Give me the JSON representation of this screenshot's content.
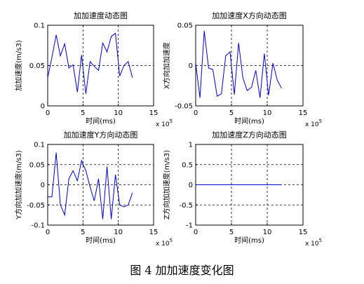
{
  "caption": "图 4 加加速度变化图",
  "colors": {
    "line": "#0000cc",
    "axis": "#000000",
    "grid": "#000000",
    "background": "#ffffff"
  },
  "chart_data": [
    {
      "type": "line",
      "title": "加加速度动态图",
      "xlabel": "时间(ms)",
      "ylabel": "加加速度(m/s3)",
      "x_exponent_label": "x 10",
      "x_exponent_sup": "5",
      "xlim": [
        0,
        15
      ],
      "ylim": [
        0,
        0.1
      ],
      "xticks": [
        "0",
        "5",
        "10",
        "15"
      ],
      "yticks": [
        "0",
        "0.05",
        "0.1"
      ],
      "grid": true,
      "series": [
        {
          "x": [
            0,
            0.6,
            1.2,
            1.8,
            2.4,
            3.0,
            3.6,
            4.2,
            4.8,
            5.4,
            6.0,
            6.6,
            7.2,
            7.8,
            8.4,
            9.0,
            9.6,
            10.2,
            10.8,
            11.4,
            12.0
          ],
          "y": [
            0.035,
            0.06,
            0.088,
            0.062,
            0.077,
            0.047,
            0.051,
            0.017,
            0.063,
            0.015,
            0.055,
            0.049,
            0.044,
            0.078,
            0.067,
            0.086,
            0.09,
            0.037,
            0.05,
            0.055,
            0.035
          ]
        }
      ]
    },
    {
      "type": "line",
      "title": "加加速度X方向动态图",
      "xlabel": "时间(ms)",
      "ylabel": "X方向加加速度",
      "x_exponent_label": "x 10",
      "x_exponent_sup": "5",
      "xlim": [
        0,
        15
      ],
      "ylim": [
        -0.05,
        0.05
      ],
      "xticks": [
        "0",
        "5",
        "10",
        "15"
      ],
      "yticks": [
        "-0.05",
        "0",
        "0.05"
      ],
      "grid": true,
      "series": [
        {
          "x": [
            0,
            0.6,
            1.2,
            1.8,
            2.4,
            3.0,
            3.6,
            4.2,
            4.8,
            5.4,
            6.0,
            6.6,
            7.2,
            7.8,
            8.4,
            9.0,
            9.6,
            10.2,
            10.8,
            11.4,
            12.0
          ],
          "y": [
            0.003,
            -0.04,
            0.043,
            -0.003,
            -0.005,
            -0.038,
            -0.035,
            0.012,
            0.017,
            -0.036,
            0.028,
            -0.015,
            -0.031,
            -0.027,
            -0.006,
            -0.04,
            0.015,
            -0.037,
            0.003,
            -0.018,
            -0.028
          ]
        }
      ]
    },
    {
      "type": "line",
      "title": "加加速度Y方向动态图",
      "xlabel": "时间(ms)",
      "ylabel": "Y方向加加速度(m/s3)",
      "x_exponent_label": "x 10",
      "x_exponent_sup": "5",
      "xlim": [
        0,
        15
      ],
      "ylim": [
        -0.1,
        0.1
      ],
      "xticks": [
        "0",
        "5",
        "10",
        "15"
      ],
      "yticks": [
        "-0.1",
        "-0.05",
        "0",
        "0.05",
        "0.1"
      ],
      "grid": true,
      "series": [
        {
          "x": [
            0,
            0.6,
            1.2,
            1.8,
            2.4,
            3.0,
            3.6,
            4.2,
            4.8,
            5.4,
            6.0,
            6.6,
            7.2,
            7.8,
            8.4,
            9.0,
            9.6,
            10.2,
            10.8,
            11.4,
            12.0
          ],
          "y": [
            -0.03,
            -0.03,
            0.08,
            -0.05,
            -0.075,
            0.015,
            0.035,
            0.01,
            0.06,
            0.035,
            -0.005,
            -0.04,
            0.015,
            -0.085,
            0.045,
            -0.085,
            0.025,
            -0.05,
            -0.055,
            -0.05,
            -0.02
          ]
        }
      ]
    },
    {
      "type": "line",
      "title": "加加速度Z方向动态图",
      "xlabel": "时间(ms)",
      "ylabel": "Z方向加加速度(m/s3)",
      "x_exponent_label": "x 10",
      "x_exponent_sup": "5",
      "xlim": [
        0,
        15
      ],
      "ylim": [
        -1,
        1
      ],
      "xticks": [
        "0",
        "5",
        "10",
        "15"
      ],
      "yticks": [
        "-1",
        "-0.5",
        "0",
        "0.5",
        "1"
      ],
      "grid": true,
      "series": [
        {
          "x": [
            0,
            12.0
          ],
          "y": [
            0,
            0
          ]
        }
      ]
    }
  ]
}
